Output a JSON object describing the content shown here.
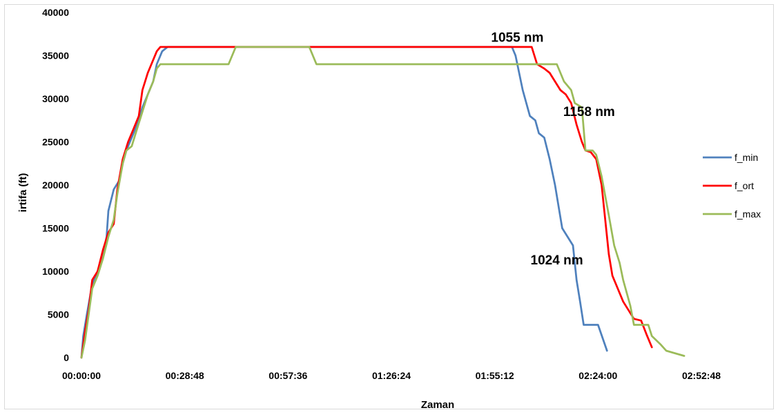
{
  "chart_data": {
    "type": "line",
    "title": "",
    "xlabel": "Zaman",
    "ylabel": "irtifa  (ft)",
    "x_unit": "hh:mm:ss",
    "xlim": [
      "00:00:00",
      "02:52:48"
    ],
    "ylim": [
      0,
      40000
    ],
    "x_ticks": [
      "00:00:00",
      "00:28:48",
      "00:57:36",
      "01:26:24",
      "01:55:12",
      "02:24:00",
      "02:52:48"
    ],
    "y_ticks": [
      "0",
      "5000",
      "10000",
      "15000",
      "20000",
      "25000",
      "30000",
      "35000",
      "40000"
    ],
    "grid": false,
    "legend_position": "right",
    "series": [
      {
        "name": "f_min",
        "color": "#4f81bd",
        "points": [
          [
            "00:00:00",
            0
          ],
          [
            "00:00:30",
            2500
          ],
          [
            "00:01:30",
            5000
          ],
          [
            "00:03:00",
            8500
          ],
          [
            "00:04:30",
            10000
          ],
          [
            "00:06:00",
            12000
          ],
          [
            "00:07:00",
            14000
          ],
          [
            "00:07:30",
            17000
          ],
          [
            "00:09:00",
            19500
          ],
          [
            "00:10:30",
            20500
          ],
          [
            "00:11:30",
            22500
          ],
          [
            "00:12:30",
            24000
          ],
          [
            "00:14:00",
            25500
          ],
          [
            "00:15:30",
            27000
          ],
          [
            "00:17:00",
            29000
          ],
          [
            "00:18:30",
            30500
          ],
          [
            "00:20:00",
            32000
          ],
          [
            "00:21:00",
            34000
          ],
          [
            "00:22:30",
            35500
          ],
          [
            "00:24:00",
            36000
          ],
          [
            "02:00:00",
            36000
          ],
          [
            "02:01:00",
            35000
          ],
          [
            "02:02:00",
            33000
          ],
          [
            "02:03:00",
            31000
          ],
          [
            "02:04:00",
            29500
          ],
          [
            "02:05:00",
            28000
          ],
          [
            "02:06:30",
            27500
          ],
          [
            "02:07:30",
            26000
          ],
          [
            "02:09:00",
            25500
          ],
          [
            "02:10:30",
            23000
          ],
          [
            "02:12:00",
            20000
          ],
          [
            "02:13:00",
            17500
          ],
          [
            "02:14:00",
            15000
          ],
          [
            "02:15:30",
            14000
          ],
          [
            "02:17:00",
            13000
          ],
          [
            "02:17:30",
            11000
          ],
          [
            "02:18:00",
            9000
          ],
          [
            "02:19:00",
            6500
          ],
          [
            "02:20:00",
            3800
          ],
          [
            "02:24:00",
            3800
          ],
          [
            "02:25:30",
            2000
          ],
          [
            "02:26:30",
            800
          ]
        ]
      },
      {
        "name": "f_ort",
        "color": "#ff0000",
        "points": [
          [
            "00:00:00",
            0
          ],
          [
            "00:01:00",
            3000
          ],
          [
            "00:02:00",
            5500
          ],
          [
            "00:03:00",
            9000
          ],
          [
            "00:04:30",
            10000
          ],
          [
            "00:06:00",
            12500
          ],
          [
            "00:07:30",
            14500
          ],
          [
            "00:09:00",
            15500
          ],
          [
            "00:10:00",
            19500
          ],
          [
            "00:11:30",
            23000
          ],
          [
            "00:13:00",
            25000
          ],
          [
            "00:14:30",
            26500
          ],
          [
            "00:16:00",
            28000
          ],
          [
            "00:17:00",
            31000
          ],
          [
            "00:18:30",
            33000
          ],
          [
            "00:20:00",
            34500
          ],
          [
            "00:21:00",
            35500
          ],
          [
            "00:22:00",
            36000
          ],
          [
            "02:05:30",
            36000
          ],
          [
            "02:07:00",
            34000
          ],
          [
            "02:09:00",
            33500
          ],
          [
            "02:10:30",
            33000
          ],
          [
            "02:12:00",
            32000
          ],
          [
            "02:13:30",
            31000
          ],
          [
            "02:15:00",
            30500
          ],
          [
            "02:16:30",
            29500
          ],
          [
            "02:18:00",
            27000
          ],
          [
            "02:19:30",
            25000
          ],
          [
            "02:20:30",
            24000
          ],
          [
            "02:22:00",
            23800
          ],
          [
            "02:23:30",
            23000
          ],
          [
            "02:25:00",
            20000
          ],
          [
            "02:26:00",
            16000
          ],
          [
            "02:27:00",
            12000
          ],
          [
            "02:28:00",
            9500
          ],
          [
            "02:29:30",
            8000
          ],
          [
            "02:31:00",
            6500
          ],
          [
            "02:32:30",
            5500
          ],
          [
            "02:34:00",
            4500
          ],
          [
            "02:36:00",
            4300
          ],
          [
            "02:37:30",
            2700
          ],
          [
            "02:39:00",
            1200
          ]
        ]
      },
      {
        "name": "f_max",
        "color": "#9bbb59",
        "points": [
          [
            "00:00:00",
            0
          ],
          [
            "00:01:00",
            2000
          ],
          [
            "00:02:00",
            5000
          ],
          [
            "00:03:00",
            8000
          ],
          [
            "00:04:30",
            9500
          ],
          [
            "00:06:00",
            11500
          ],
          [
            "00:07:30",
            14000
          ],
          [
            "00:09:00",
            16000
          ],
          [
            "00:10:00",
            19000
          ],
          [
            "00:11:30",
            22500
          ],
          [
            "00:12:30",
            24000
          ],
          [
            "00:14:00",
            24500
          ],
          [
            "00:15:30",
            26500
          ],
          [
            "00:17:00",
            28500
          ],
          [
            "00:18:30",
            30500
          ],
          [
            "00:20:00",
            32000
          ],
          [
            "00:21:00",
            33500
          ],
          [
            "00:22:00",
            34000
          ],
          [
            "00:41:00",
            34000
          ],
          [
            "00:43:00",
            36000
          ],
          [
            "01:03:30",
            36000
          ],
          [
            "01:05:30",
            34000
          ],
          [
            "02:12:30",
            34000
          ],
          [
            "02:13:30",
            33000
          ],
          [
            "02:14:30",
            32000
          ],
          [
            "02:16:30",
            31000
          ],
          [
            "02:17:30",
            29500
          ],
          [
            "02:19:30",
            29000
          ],
          [
            "02:20:30",
            24000
          ],
          [
            "02:22:30",
            24000
          ],
          [
            "02:23:30",
            23500
          ],
          [
            "02:25:00",
            21000
          ],
          [
            "02:27:00",
            16500
          ],
          [
            "02:28:30",
            13000
          ],
          [
            "02:30:00",
            11000
          ],
          [
            "02:31:00",
            9000
          ],
          [
            "02:33:00",
            6000
          ],
          [
            "02:34:00",
            3800
          ],
          [
            "02:38:00",
            3800
          ],
          [
            "02:39:00",
            2500
          ],
          [
            "02:41:30",
            1500
          ],
          [
            "02:43:00",
            800
          ],
          [
            "02:48:00",
            200
          ]
        ]
      }
    ],
    "annotations": [
      {
        "text": "1055 nm",
        "x": "02:01:30",
        "y": 36600
      },
      {
        "text": "1158 nm",
        "x": "02:21:30",
        "y": 28000
      },
      {
        "text": "1024 nm",
        "x": "02:12:30",
        "y": 10800
      }
    ]
  }
}
